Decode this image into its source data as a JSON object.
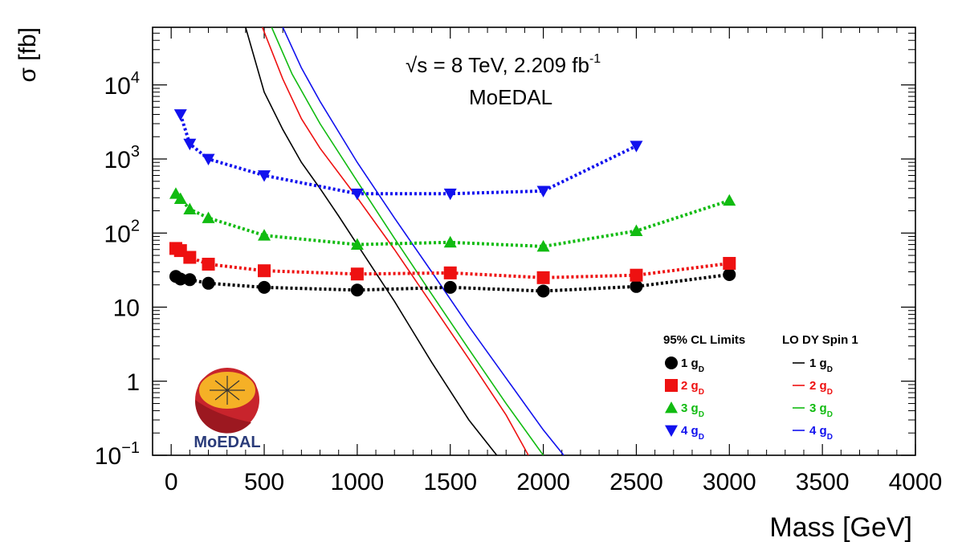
{
  "chart_data": {
    "type": "line",
    "title_line1": "√s = 8 TeV, 2.209 fb",
    "title_line1_sup": "-1",
    "title_line2": "MoEDAL",
    "xlabel": "Mass [GeV]",
    "ylabel": "σ [fb]",
    "xlim": [
      -100,
      4000
    ],
    "ylim": [
      0.1,
      60000
    ],
    "yscale": "log",
    "x_ticks": [
      0,
      500,
      1000,
      1500,
      2000,
      2500,
      3000,
      3500,
      4000
    ],
    "y_tick_labels": [
      {
        "value": 10000,
        "base": "10",
        "exp": "4"
      },
      {
        "value": 1000,
        "base": "10",
        "exp": "3"
      },
      {
        "value": 100,
        "base": "10",
        "exp": "2"
      },
      {
        "value": 10,
        "base": "10",
        "exp": ""
      },
      {
        "value": 1,
        "base": "1",
        "exp": ""
      },
      {
        "value": 0.1,
        "base": "10",
        "exp": "−1"
      }
    ],
    "legend_limits_title": "95% CL Limits",
    "legend_theory_title": "LO DY Spin 1",
    "colors": {
      "1": "#000000",
      "2": "#ee1111",
      "3": "#11bb11",
      "4": "#1111ee"
    },
    "limit_series": [
      {
        "name": "1 g",
        "sub": "D",
        "color": "#000000",
        "marker": "circle",
        "x": [
          25,
          50,
          100,
          200,
          500,
          1000,
          1500,
          2000,
          2500,
          3000
        ],
        "y": [
          26,
          24,
          23.5,
          21,
          18.5,
          17,
          18.5,
          16.5,
          19,
          27.5
        ]
      },
      {
        "name": "2 g",
        "sub": "D",
        "color": "#ee1111",
        "marker": "square",
        "x": [
          25,
          50,
          100,
          200,
          500,
          1000,
          1500,
          2000,
          2500,
          3000
        ],
        "y": [
          62,
          58,
          47,
          38,
          31,
          28,
          29,
          25,
          27,
          39
        ]
      },
      {
        "name": "3 g",
        "sub": "D",
        "color": "#11bb11",
        "marker": "triangle-up",
        "x": [
          25,
          50,
          100,
          200,
          500,
          1000,
          1500,
          2000,
          2500,
          3000
        ],
        "y": [
          340,
          290,
          210,
          160,
          93,
          70,
          75,
          66,
          107,
          275
        ]
      },
      {
        "name": "4 g",
        "sub": "D",
        "color": "#1111ee",
        "marker": "triangle-down",
        "x": [
          50,
          100,
          200,
          500,
          1000,
          1500,
          2000,
          2500
        ],
        "y": [
          4000,
          1600,
          1000,
          600,
          340,
          340,
          370,
          1500
        ]
      }
    ],
    "theory_series": [
      {
        "name": "1 g",
        "sub": "D",
        "color": "#000000",
        "x": [
          400,
          500,
          600,
          700,
          800,
          900,
          1000,
          1200,
          1400,
          1600,
          1750
        ],
        "y": [
          60000,
          8000,
          2500,
          900,
          400,
          170,
          70,
          12,
          1.8,
          0.3,
          0.1
        ]
      },
      {
        "name": "2 g",
        "sub": "D",
        "color": "#ee1111",
        "x": [
          490,
          600,
          700,
          800,
          1000,
          1200,
          1400,
          1600,
          1800,
          1920
        ],
        "y": [
          60000,
          12000,
          3500,
          1400,
          300,
          60,
          11,
          2,
          0.35,
          0.1
        ]
      },
      {
        "name": "3 g",
        "sub": "D",
        "color": "#11bb11",
        "x": [
          540,
          650,
          800,
          1000,
          1200,
          1400,
          1600,
          1800,
          2000
        ],
        "y": [
          60000,
          14000,
          3000,
          500,
          85,
          15,
          2.7,
          0.5,
          0.1
        ]
      },
      {
        "name": "4 g",
        "sub": "D",
        "color": "#1111ee",
        "x": [
          600,
          700,
          800,
          1000,
          1200,
          1400,
          1600,
          1800,
          2000,
          2110
        ],
        "y": [
          60000,
          17000,
          6000,
          900,
          160,
          30,
          5.5,
          1.1,
          0.22,
          0.1
        ]
      }
    ]
  },
  "logo": {
    "text": "MoEDAL",
    "colors": {
      "outer": "#c8242c",
      "inner": "#f5b026",
      "text": "#2a3b7a"
    }
  }
}
